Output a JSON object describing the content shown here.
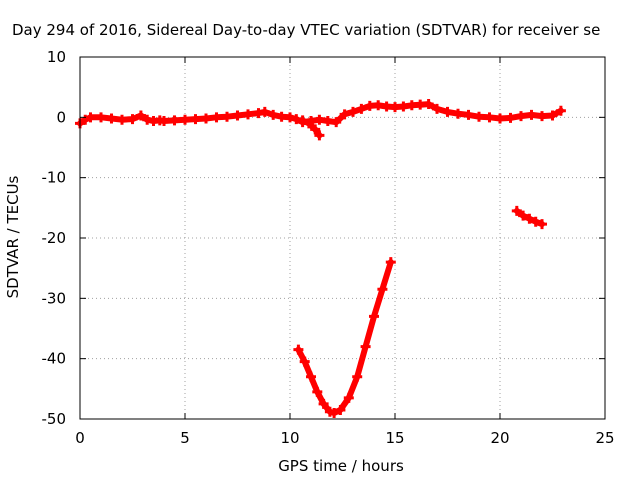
{
  "chart_data": {
    "type": "scatter",
    "title": "Day 294 of 2016, Sidereal Day-to-day VTEC variation (SDTVAR) for receiver se",
    "xlabel": "GPS time / hours",
    "ylabel": "SDTVAR / TECUs",
    "xlim": [
      0,
      25
    ],
    "ylim": [
      -50,
      10
    ],
    "x_ticks": [
      0,
      5,
      10,
      15,
      20,
      25
    ],
    "y_ticks": [
      10,
      0,
      -10,
      -20,
      -30,
      -40,
      -50
    ],
    "x_tick_labels": [
      "0",
      "5",
      "10",
      "15",
      "20",
      "25"
    ],
    "y_tick_labels": [
      "10",
      "0",
      "-10",
      "-20",
      "-30",
      "-40",
      "-50"
    ],
    "grid": true,
    "color": "#ff0000",
    "series": [
      {
        "x": [
          0.0,
          0.25,
          0.5,
          1.0,
          1.5,
          2.0,
          2.5,
          2.9,
          3.2,
          3.5,
          3.8,
          4.0,
          4.5,
          5.0,
          5.5,
          6.0,
          6.5,
          7.0,
          7.5,
          8.0,
          8.5,
          8.8,
          9.2,
          9.6,
          10.0,
          10.3,
          10.6,
          11.0,
          11.4,
          11.8,
          12.2,
          12.6,
          13.0,
          13.4,
          13.8,
          14.2,
          14.6,
          15.0,
          15.4,
          15.8,
          16.2,
          16.6,
          17.0,
          17.5,
          18.0,
          18.5,
          19.0,
          19.5,
          20.0,
          20.5,
          21.0,
          21.5,
          22.0,
          22.5,
          22.9
        ],
        "y": [
          -1.0,
          -0.4,
          0.0,
          0.0,
          -0.2,
          -0.4,
          -0.3,
          0.3,
          -0.4,
          -0.6,
          -0.5,
          -0.6,
          -0.5,
          -0.4,
          -0.3,
          -0.2,
          0.0,
          0.1,
          0.3,
          0.5,
          0.7,
          0.9,
          0.4,
          0.1,
          0.0,
          -0.3,
          -0.8,
          -0.6,
          -0.4,
          -0.6,
          -0.8,
          0.5,
          0.9,
          1.4,
          1.9,
          2.0,
          1.8,
          1.7,
          1.8,
          2.0,
          2.1,
          2.2,
          1.4,
          0.9,
          0.6,
          0.4,
          0.1,
          0.0,
          -0.2,
          -0.1,
          0.2,
          0.4,
          0.2,
          0.3,
          1.1
        ]
      },
      {
        "x": [
          10.6,
          10.9,
          11.2,
          11.4
        ],
        "y": [
          -0.5,
          -1.0,
          -2.0,
          -3.0
        ]
      },
      {
        "x": [
          10.4,
          10.7,
          11.0,
          11.3,
          11.6,
          11.9,
          12.1,
          12.4,
          12.8,
          13.2,
          13.6,
          14.0,
          14.4,
          14.8
        ],
        "y": [
          -38.5,
          -40.5,
          -43.0,
          -45.5,
          -47.5,
          -48.8,
          -49.0,
          -48.5,
          -46.5,
          -43.0,
          -38.0,
          -33.0,
          -28.5,
          -24.0
        ]
      },
      {
        "x": [
          20.8,
          21.1,
          21.4,
          21.7,
          22.0
        ],
        "y": [
          -15.5,
          -16.3,
          -16.8,
          -17.3,
          -17.7
        ]
      }
    ]
  }
}
